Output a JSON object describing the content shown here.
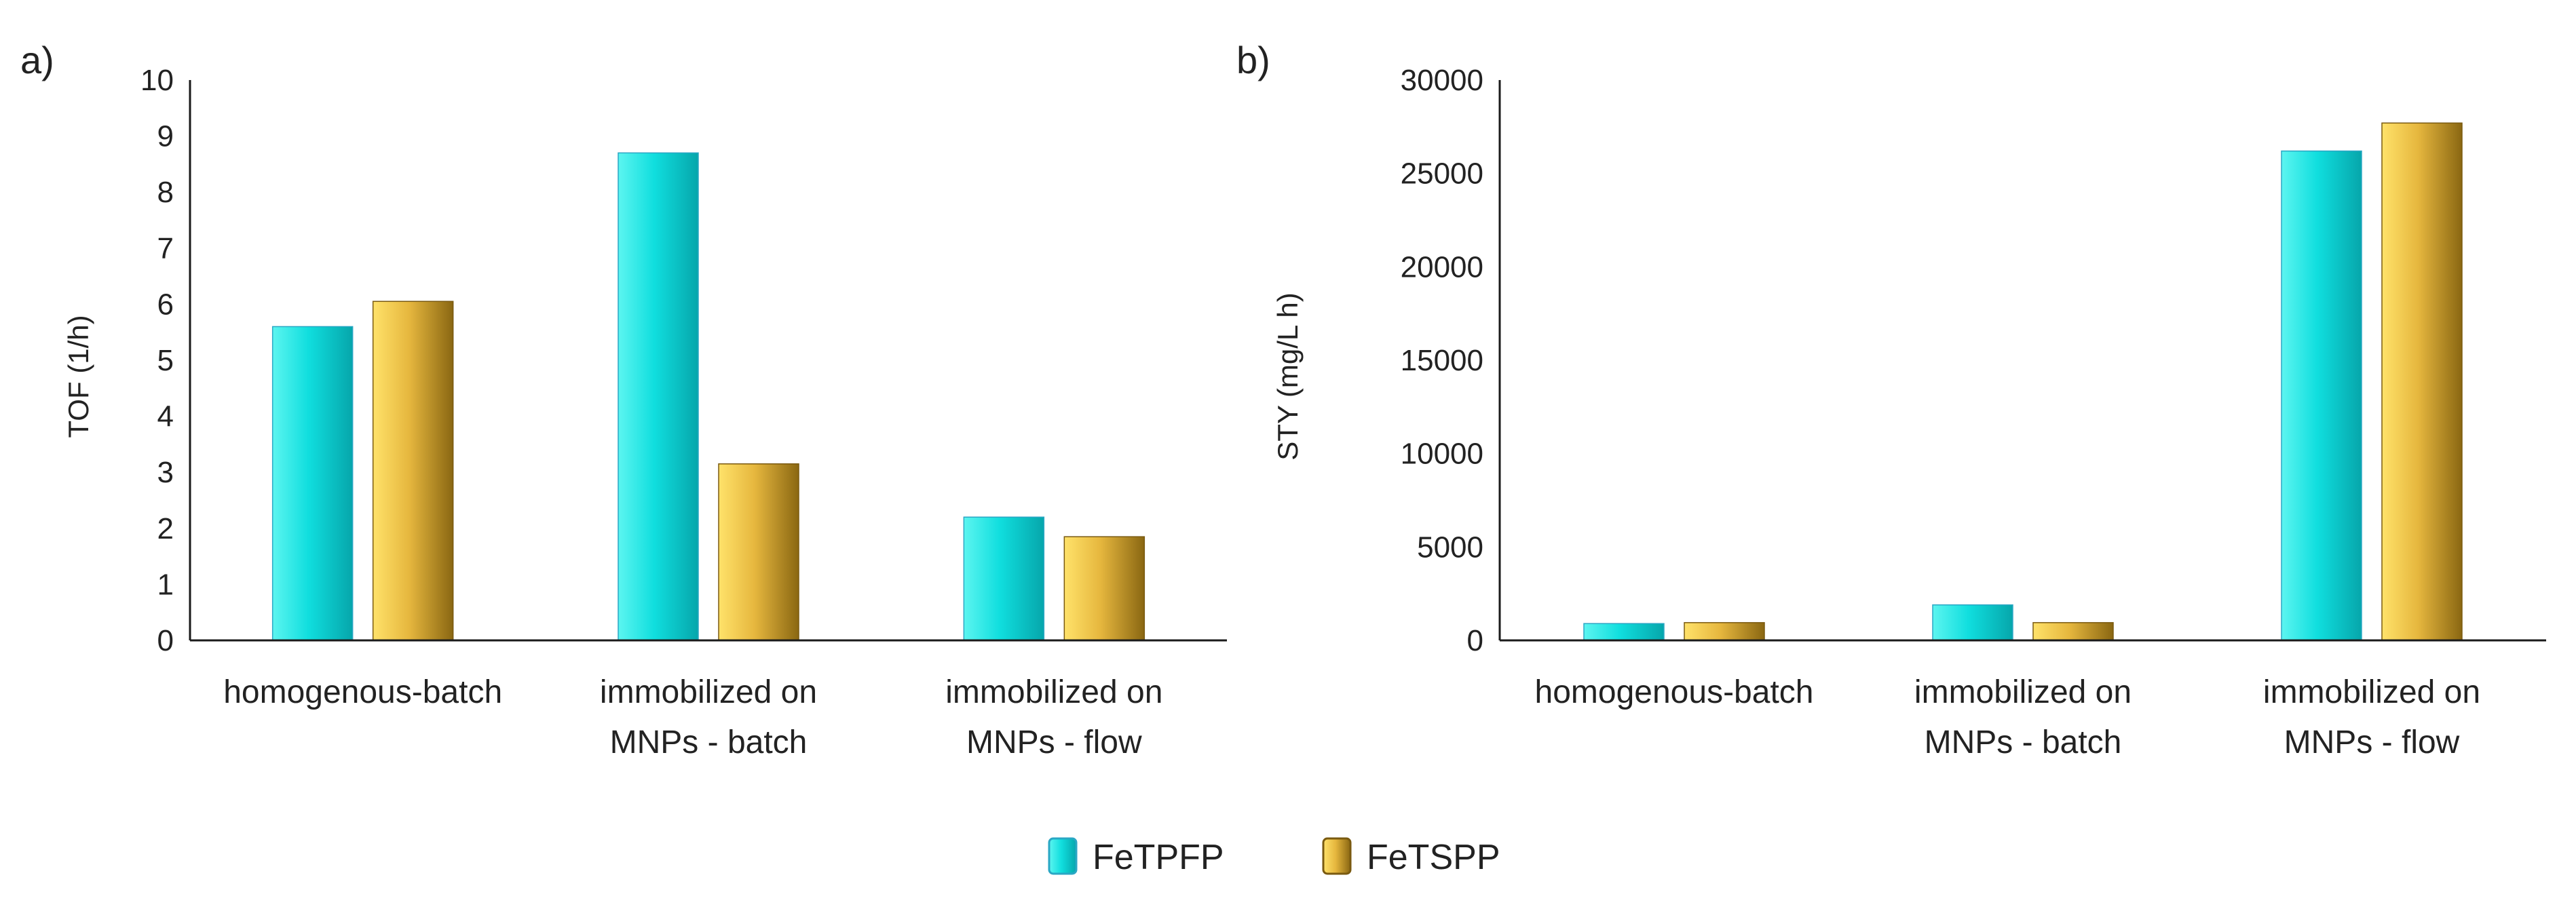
{
  "chart_data": [
    {
      "type": "bar",
      "panel_label": "a)",
      "title": "",
      "xlabel": "",
      "ylabel": "TOF (1/h)",
      "ylim": [
        0,
        10
      ],
      "yticks": [
        "0",
        "1",
        "2",
        "3",
        "4",
        "5",
        "6",
        "7",
        "8",
        "9",
        "10"
      ],
      "grid": false,
      "categories": [
        [
          "homogenous-batch"
        ],
        [
          "immobilized on",
          "MNPs - batch"
        ],
        [
          "immobilized on",
          "MNPs - flow"
        ]
      ],
      "series": [
        {
          "name": "FeTPFP",
          "values": [
            5.6,
            8.7,
            2.2
          ]
        },
        {
          "name": "FeTSPP",
          "values": [
            6.05,
            3.15,
            1.85
          ]
        }
      ]
    },
    {
      "type": "bar",
      "panel_label": "b)",
      "title": "",
      "xlabel": "",
      "ylabel": "STY (mg/L h)",
      "ylim": [
        0,
        30000
      ],
      "yticks": [
        "0",
        "5000",
        "10000",
        "15000",
        "20000",
        "25000",
        "30000"
      ],
      "grid": false,
      "categories": [
        [
          "homogenous-batch"
        ],
        [
          "immobilized on",
          "MNPs - batch"
        ],
        [
          "immobilized on",
          "MNPs - flow"
        ]
      ],
      "series": [
        {
          "name": "FeTPFP",
          "values": [
            900,
            1900,
            26200
          ]
        },
        {
          "name": "FeTSPP",
          "values": [
            950,
            950,
            27700
          ]
        }
      ]
    }
  ],
  "legend": {
    "position": "bottom-center",
    "entries": [
      {
        "name": "FeTPFP",
        "color_light": "#5cf5f0",
        "color_mid": "#10dede",
        "color_dark": "#06a6ab",
        "border": "#2aa7c4"
      },
      {
        "name": "FeTSPP",
        "color_light": "#ffe26a",
        "color_mid": "#e6b73e",
        "color_dark": "#8a6712",
        "border": "#7a5a10"
      }
    ]
  }
}
